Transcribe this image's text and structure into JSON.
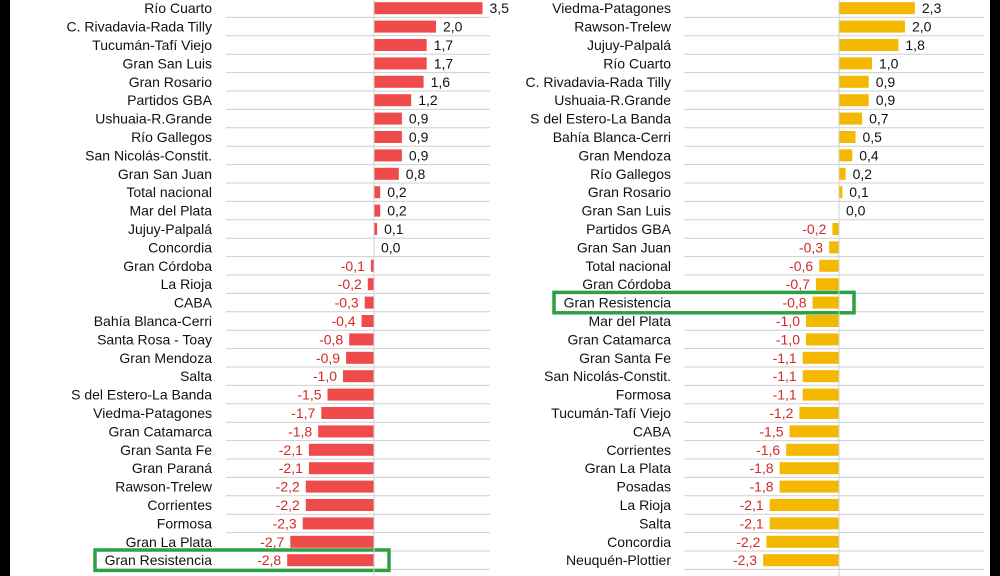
{
  "chart_data": [
    {
      "type": "bar",
      "orientation": "horizontal",
      "bar_color": "#ef4b4b",
      "highlight": "Gran Resistencia",
      "highlight_color": "#2ea043",
      "categories": [
        "Río Cuarto",
        "C. Rivadavia-Rada Tilly",
        "Tucumán-Tafí Viejo",
        "Gran San Luis",
        "Gran Rosario",
        "Partidos GBA",
        "Ushuaia-R.Grande",
        "Río Gallegos",
        "San Nicolás-Constit.",
        "Gran San Juan",
        "Total nacional",
        "Mar del Plata",
        "Jujuy-Palpalá",
        "Concordia",
        "Gran Córdoba",
        "La Rioja",
        "CABA",
        "Bahía Blanca-Cerri",
        "Santa Rosa - Toay",
        "Gran Mendoza",
        "Salta",
        "S del Estero-La Banda",
        "Viedma-Patagones",
        "Gran Catamarca",
        "Gran Santa Fe",
        "Gran Paraná",
        "Rawson-Trelew",
        "Corrientes",
        "Formosa",
        "Gran La Plata",
        "Gran Resistencia"
      ],
      "values": [
        3.5,
        2.0,
        1.7,
        1.7,
        1.6,
        1.2,
        0.9,
        0.9,
        0.9,
        0.8,
        0.2,
        0.2,
        0.1,
        0.0,
        -0.1,
        -0.2,
        -0.3,
        -0.4,
        -0.8,
        -0.9,
        -1.0,
        -1.5,
        -1.7,
        -1.8,
        -2.1,
        -2.1,
        -2.2,
        -2.2,
        -2.3,
        -2.7,
        -2.8
      ],
      "value_labels": [
        "3,5",
        "2,0",
        "1,7",
        "1,7",
        "1,6",
        "1,2",
        "0,9",
        "0,9",
        "0,9",
        "0,8",
        "0,2",
        "0,2",
        "0,1",
        "0,0",
        "-0,1",
        "-0,2",
        "-0,3",
        "-0,4",
        "-0,8",
        "-0,9",
        "-1,0",
        "-1,5",
        "-1,7",
        "-1,8",
        "-2,1",
        "-2,1",
        "-2,2",
        "-2,2",
        "-2,3",
        "-2,7",
        "-2,8"
      ]
    },
    {
      "type": "bar",
      "orientation": "horizontal",
      "bar_color": "#f5b800",
      "highlight": "Gran Resistencia",
      "highlight_color": "#2ea043",
      "categories": [
        "Viedma-Patagones",
        "Rawson-Trelew",
        "Jujuy-Palpalá",
        "Río Cuarto",
        "C. Rivadavia-Rada Tilly",
        "Ushuaia-R.Grande",
        "S del Estero-La Banda",
        "Bahía Blanca-Cerri",
        "Gran Mendoza",
        "Río Gallegos",
        "Gran Rosario",
        "Gran San Luis",
        "Partidos GBA",
        "Gran San Juan",
        "Total nacional",
        "Gran Córdoba",
        "Gran Resistencia",
        "Mar del Plata",
        "Gran Catamarca",
        "Gran Santa Fe",
        "San Nicolás-Constit.",
        "Formosa",
        "Tucumán-Tafí Viejo",
        "CABA",
        "Corrientes",
        "Gran La Plata",
        "Posadas",
        "La Rioja",
        "Salta",
        "Concordia",
        "Neuquén-Plottier"
      ],
      "values": [
        2.3,
        2.0,
        1.8,
        1.0,
        0.9,
        0.9,
        0.7,
        0.5,
        0.4,
        0.2,
        0.1,
        0.0,
        -0.2,
        -0.3,
        -0.6,
        -0.7,
        -0.8,
        -1.0,
        -1.0,
        -1.1,
        -1.1,
        -1.1,
        -1.2,
        -1.5,
        -1.6,
        -1.8,
        -1.8,
        -2.1,
        -2.1,
        -2.2,
        -2.3
      ],
      "value_labels": [
        "2,3",
        "2,0",
        "1,8",
        "1,0",
        "0,9",
        "0,9",
        "0,7",
        "0,5",
        "0,4",
        "0,2",
        "0,1",
        "0,0",
        "-0,2",
        "-0,3",
        "-0,6",
        "-0,7",
        "-0,8",
        "-1,0",
        "-1,0",
        "-1,1",
        "-1,1",
        "-1,1",
        "-1,2",
        "-1,5",
        "-1,6",
        "-1,8",
        "-1,8",
        "-2,1",
        "-2,1",
        "-2,2",
        "-2,3"
      ]
    }
  ]
}
